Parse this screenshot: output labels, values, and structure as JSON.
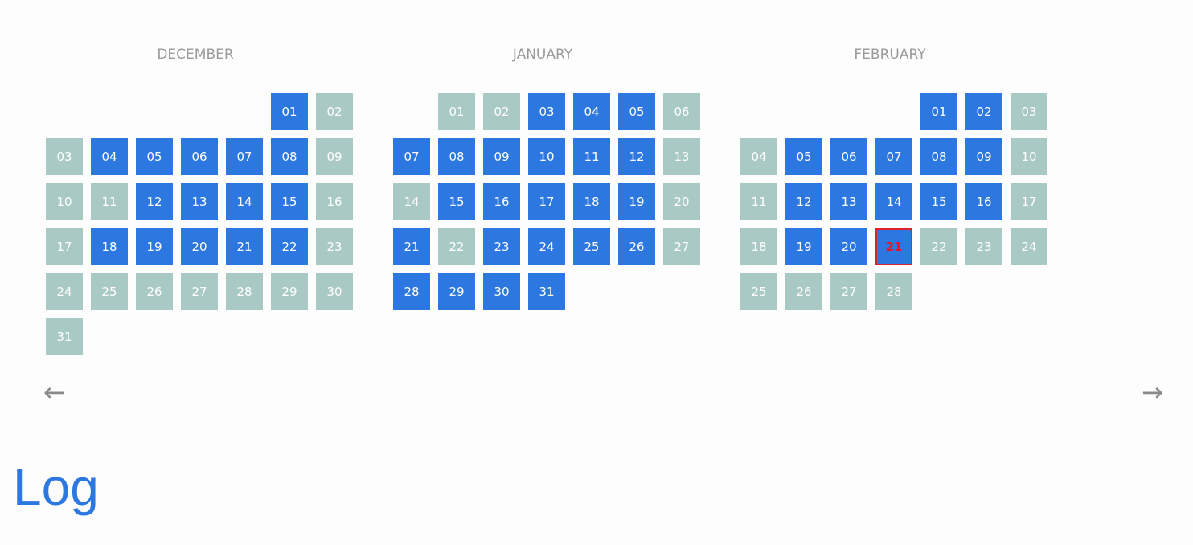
{
  "months": [
    {
      "name": "DECEMBER",
      "start_weekday": 5,
      "days": [
        {
          "label": "01",
          "state": "active"
        },
        {
          "label": "02",
          "state": "inactive"
        },
        {
          "label": "03",
          "state": "inactive"
        },
        {
          "label": "04",
          "state": "active"
        },
        {
          "label": "05",
          "state": "active"
        },
        {
          "label": "06",
          "state": "active"
        },
        {
          "label": "07",
          "state": "active"
        },
        {
          "label": "08",
          "state": "active"
        },
        {
          "label": "09",
          "state": "inactive"
        },
        {
          "label": "10",
          "state": "inactive"
        },
        {
          "label": "11",
          "state": "inactive"
        },
        {
          "label": "12",
          "state": "active"
        },
        {
          "label": "13",
          "state": "active"
        },
        {
          "label": "14",
          "state": "active"
        },
        {
          "label": "15",
          "state": "active"
        },
        {
          "label": "16",
          "state": "inactive"
        },
        {
          "label": "17",
          "state": "inactive"
        },
        {
          "label": "18",
          "state": "active"
        },
        {
          "label": "19",
          "state": "active"
        },
        {
          "label": "20",
          "state": "active"
        },
        {
          "label": "21",
          "state": "active"
        },
        {
          "label": "22",
          "state": "active"
        },
        {
          "label": "23",
          "state": "inactive"
        },
        {
          "label": "24",
          "state": "inactive"
        },
        {
          "label": "25",
          "state": "inactive"
        },
        {
          "label": "26",
          "state": "inactive"
        },
        {
          "label": "27",
          "state": "inactive"
        },
        {
          "label": "28",
          "state": "inactive"
        },
        {
          "label": "29",
          "state": "inactive"
        },
        {
          "label": "30",
          "state": "inactive"
        },
        {
          "label": "31",
          "state": "inactive"
        }
      ]
    },
    {
      "name": "JANUARY",
      "start_weekday": 1,
      "days": [
        {
          "label": "01",
          "state": "inactive"
        },
        {
          "label": "02",
          "state": "inactive"
        },
        {
          "label": "03",
          "state": "active"
        },
        {
          "label": "04",
          "state": "active"
        },
        {
          "label": "05",
          "state": "active"
        },
        {
          "label": "06",
          "state": "inactive"
        },
        {
          "label": "07",
          "state": "active"
        },
        {
          "label": "08",
          "state": "active"
        },
        {
          "label": "09",
          "state": "active"
        },
        {
          "label": "10",
          "state": "active"
        },
        {
          "label": "11",
          "state": "active"
        },
        {
          "label": "12",
          "state": "active"
        },
        {
          "label": "13",
          "state": "inactive"
        },
        {
          "label": "14",
          "state": "inactive"
        },
        {
          "label": "15",
          "state": "active"
        },
        {
          "label": "16",
          "state": "active"
        },
        {
          "label": "17",
          "state": "active"
        },
        {
          "label": "18",
          "state": "active"
        },
        {
          "label": "19",
          "state": "active"
        },
        {
          "label": "20",
          "state": "inactive"
        },
        {
          "label": "21",
          "state": "active"
        },
        {
          "label": "22",
          "state": "inactive"
        },
        {
          "label": "23",
          "state": "active"
        },
        {
          "label": "24",
          "state": "active"
        },
        {
          "label": "25",
          "state": "active"
        },
        {
          "label": "26",
          "state": "active"
        },
        {
          "label": "27",
          "state": "inactive"
        },
        {
          "label": "28",
          "state": "active"
        },
        {
          "label": "29",
          "state": "active"
        },
        {
          "label": "30",
          "state": "active"
        },
        {
          "label": "31",
          "state": "active"
        }
      ]
    },
    {
      "name": "FEBRUARY",
      "start_weekday": 4,
      "days": [
        {
          "label": "01",
          "state": "active"
        },
        {
          "label": "02",
          "state": "active"
        },
        {
          "label": "03",
          "state": "inactive"
        },
        {
          "label": "04",
          "state": "inactive"
        },
        {
          "label": "05",
          "state": "active"
        },
        {
          "label": "06",
          "state": "active"
        },
        {
          "label": "07",
          "state": "active"
        },
        {
          "label": "08",
          "state": "active"
        },
        {
          "label": "09",
          "state": "active"
        },
        {
          "label": "10",
          "state": "inactive"
        },
        {
          "label": "11",
          "state": "inactive"
        },
        {
          "label": "12",
          "state": "active"
        },
        {
          "label": "13",
          "state": "active"
        },
        {
          "label": "14",
          "state": "active"
        },
        {
          "label": "15",
          "state": "active"
        },
        {
          "label": "16",
          "state": "active"
        },
        {
          "label": "17",
          "state": "inactive"
        },
        {
          "label": "18",
          "state": "inactive"
        },
        {
          "label": "19",
          "state": "active"
        },
        {
          "label": "20",
          "state": "active"
        },
        {
          "label": "21",
          "state": "today"
        },
        {
          "label": "22",
          "state": "inactive"
        },
        {
          "label": "23",
          "state": "inactive"
        },
        {
          "label": "24",
          "state": "inactive"
        },
        {
          "label": "25",
          "state": "inactive"
        },
        {
          "label": "26",
          "state": "inactive"
        },
        {
          "label": "27",
          "state": "inactive"
        },
        {
          "label": "28",
          "state": "inactive"
        }
      ]
    }
  ],
  "nav": {
    "prev_label": "←",
    "next_label": "→"
  },
  "log": {
    "title": "Log"
  },
  "colors": {
    "active": "#2c77e0",
    "inactive": "#a9c9c4",
    "today_border": "#e0202a",
    "month_title": "#9a9a9a",
    "log_title": "#2c77e0"
  }
}
